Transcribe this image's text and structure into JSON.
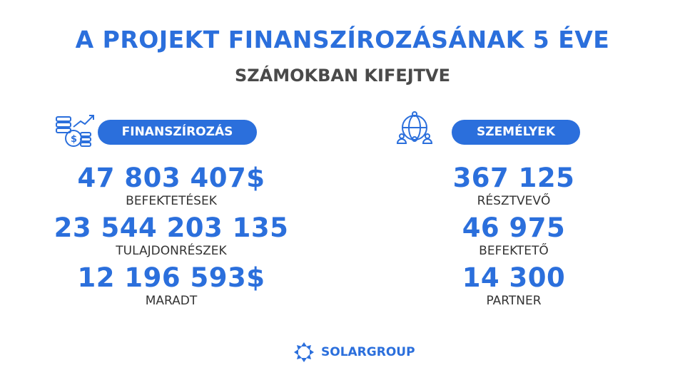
{
  "header": {
    "title": "A PROJEKT FINANSZÍROZÁSÁNAK 5 ÉVE",
    "subtitle": "SZÁMOKBAN KIFEJTVE"
  },
  "left": {
    "badge": "FINANSZÍROZÁS",
    "icon": "coins-growth-icon",
    "stats": [
      {
        "value": "47 803 407$",
        "label": "BEFEKTETÉSEK"
      },
      {
        "value": "23 544 203 135",
        "label": "TULAJDONRÉSZEK"
      },
      {
        "value": "12 196 593$",
        "label": "MARADT"
      }
    ]
  },
  "right": {
    "badge": "SZEMÉLYEK",
    "icon": "globe-people-icon",
    "stats": [
      {
        "value": "367 125",
        "label": "RÉSZTVEVŐ"
      },
      {
        "value": "46 975",
        "label": "BEFEKTETŐ"
      },
      {
        "value": "14 300",
        "label": "PARTNER"
      }
    ]
  },
  "footer": {
    "logo_text": "SOLARGROUP"
  },
  "colors": {
    "accent": "#2b6fdc"
  }
}
